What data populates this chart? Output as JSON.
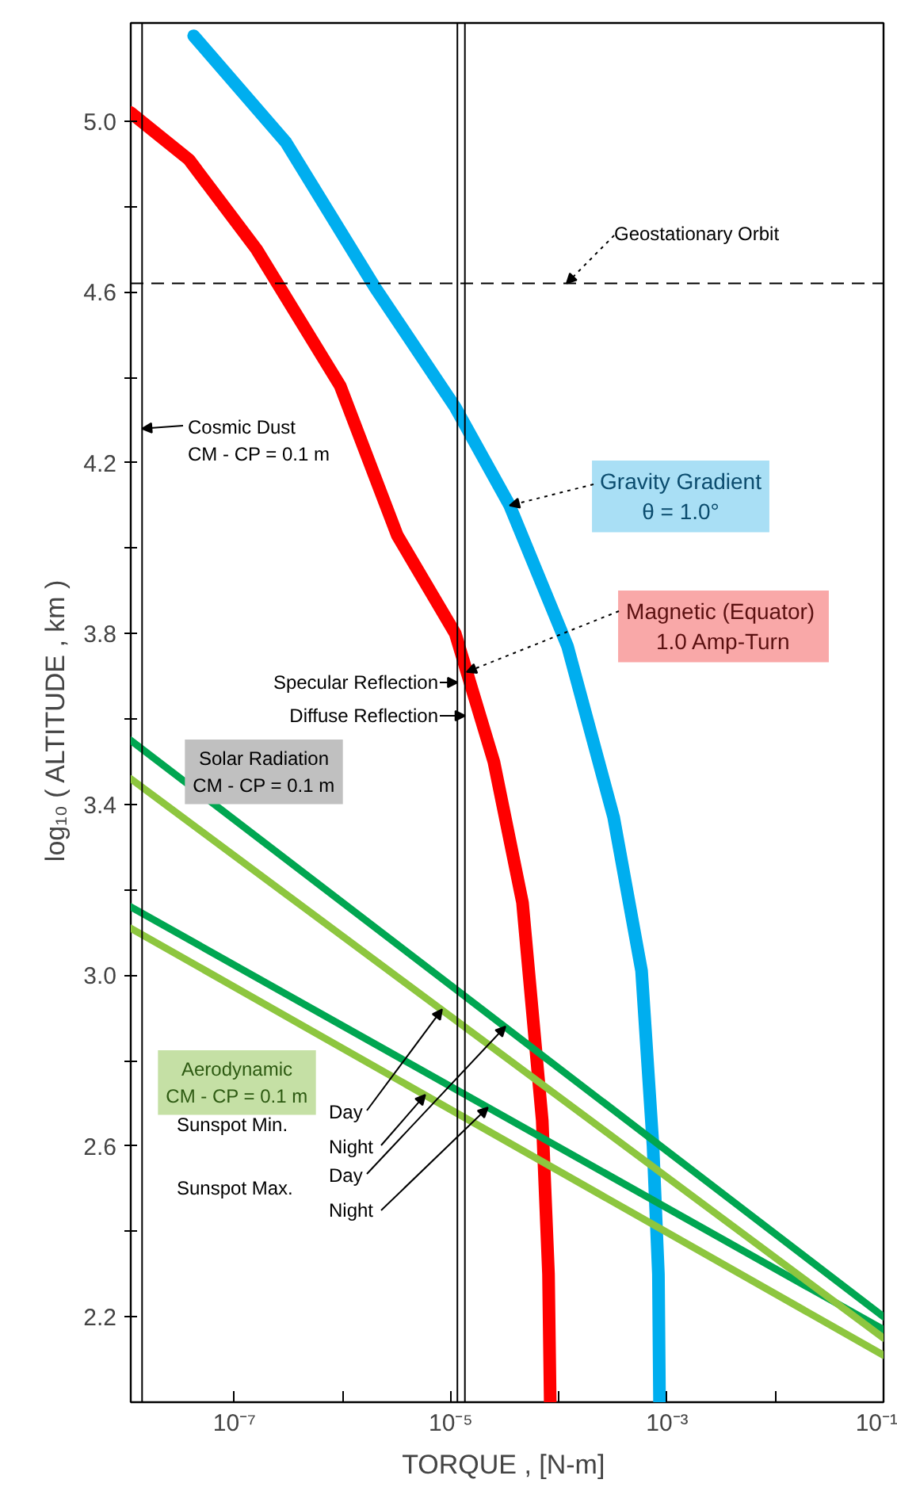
{
  "chart_data": {
    "type": "line",
    "xlabel": "TORQUE ,  [N-m]",
    "ylabel": "log₁₀  ( ALTITUDE ,  km )",
    "log": "x",
    "grid": false,
    "marker": "none",
    "line_style": "solid",
    "xlim": [
      1.1e-08,
      0.1
    ],
    "ylim": [
      2.0,
      5.23
    ],
    "xticks": [
      {
        "value": 1e-07,
        "label": "10⁻⁷"
      },
      {
        "value": 1e-06,
        "label": null
      },
      {
        "value": 1e-05,
        "label": "10⁻⁵"
      },
      {
        "value": 0.0001,
        "label": null
      },
      {
        "value": 0.001,
        "label": "10⁻³"
      },
      {
        "value": 0.01,
        "label": null
      },
      {
        "value": 0.1,
        "label": "10⁻¹"
      }
    ],
    "yticks": [
      {
        "value": 2.2,
        "label": "2.2"
      },
      {
        "value": 2.4,
        "label": null
      },
      {
        "value": 2.6,
        "label": "2.6"
      },
      {
        "value": 2.8,
        "label": null
      },
      {
        "value": 3.0,
        "label": "3.0"
      },
      {
        "value": 3.2,
        "label": null
      },
      {
        "value": 3.4,
        "label": "3.4"
      },
      {
        "value": 3.6,
        "label": null
      },
      {
        "value": 3.8,
        "label": "3.8"
      },
      {
        "value": 4.0,
        "label": null
      },
      {
        "value": 4.2,
        "label": "4.2"
      },
      {
        "value": 4.4,
        "label": null
      },
      {
        "value": 4.6,
        "label": "4.6"
      },
      {
        "value": 4.8,
        "label": null
      },
      {
        "value": 5.0,
        "label": "5.0"
      }
    ],
    "series": [
      {
        "color": "#ff0000",
        "x": [
          1.1e-08,
          3.8e-08,
          1.6e-07,
          9.5e-07,
          3.2e-06,
          1.1e-05,
          2.5e-05,
          4.6e-05,
          7e-05,
          8e-05,
          8.3e-05
        ],
        "values": [
          5.02,
          4.91,
          4.7,
          4.38,
          4.03,
          3.8,
          3.5,
          3.17,
          2.66,
          2.3,
          2.0
        ]
      },
      {
        "color": "#00aeef",
        "x": [
          4.2e-08,
          3e-07,
          2e-06,
          1.1e-05,
          3.5e-05,
          0.00012,
          0.00032,
          0.00058,
          0.00074,
          0.00083,
          0.00085
        ],
        "values": [
          5.2,
          4.95,
          4.61,
          4.33,
          4.1,
          3.77,
          3.37,
          3.01,
          2.6,
          2.3,
          2.0
        ]
      },
      {
        "color": "#00a651",
        "x": [
          1.1e-08,
          0.1
        ],
        "values": [
          3.55,
          2.2
        ]
      },
      {
        "color": "#00a651",
        "x": [
          1.1e-08,
          0.1
        ],
        "values": [
          3.16,
          2.17
        ]
      },
      {
        "color": "#8dc63f",
        "x": [
          1.1e-08,
          0.1
        ],
        "values": [
          3.46,
          2.15
        ]
      },
      {
        "color": "#8dc63f",
        "x": [
          1.1e-08,
          0.1
        ],
        "values": [
          3.11,
          2.11
        ]
      }
    ],
    "ref_lines": [
      {
        "axis": "y",
        "value": 4.62,
        "label": "Geostationary Orbit",
        "line_style": "dashed",
        "color": "#000000"
      },
      {
        "axis": "x",
        "value": 1.4e-08,
        "color": "#000000"
      },
      {
        "axis": "x",
        "value": 1.15e-05,
        "label": "Specular Reflection",
        "color": "#000000"
      },
      {
        "axis": "x",
        "value": 1.35e-05,
        "label": "Diffuse Reflection",
        "color": "#000000"
      }
    ],
    "annotations": [
      {
        "text": "Gravity Gradient\nθ = 1.0°",
        "x": 3.5e-05,
        "y": 4.1
      },
      {
        "text": "Magnetic  (Equator)\n1.0 Amp-Turn",
        "x": 1.4e-05,
        "y": 3.71
      },
      "Solar Radiation\nCM - CP = 0.1 m",
      {
        "text": "Cosmic Dust\nCM - CP = 0.1 m",
        "x": 1.4e-08,
        "y": 4.28
      },
      "Aerodynamic\nCM - CP = 0.1 m",
      "Sunspot Min.",
      "Sunspot Max.",
      {
        "text": "Day",
        "x": 8.3e-06,
        "y": 2.92
      },
      {
        "text": "Night",
        "x": 5.8e-06,
        "y": 2.72
      },
      {
        "text": "Day",
        "x": 3.2e-05,
        "y": 2.88
      },
      {
        "text": "Night",
        "x": 2.2e-05,
        "y": 2.69
      }
    ]
  }
}
